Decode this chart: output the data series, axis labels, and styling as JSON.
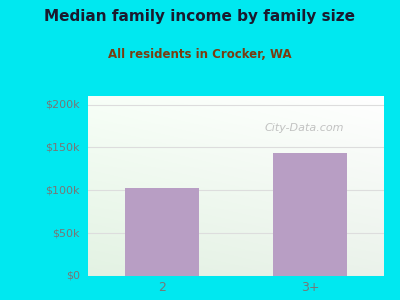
{
  "categories": [
    "2",
    "3+"
  ],
  "values": [
    103000,
    143000
  ],
  "bar_color": "#b89ec4",
  "title": "Median family income by family size",
  "subtitle": "All residents in Crocker, WA",
  "title_color": "#1a1a2e",
  "subtitle_color": "#7a3b10",
  "yticks": [
    0,
    50000,
    100000,
    150000,
    200000
  ],
  "ytick_labels": [
    "$0",
    "$50k",
    "$100k",
    "$150k",
    "$200k"
  ],
  "ylim": [
    0,
    210000
  ],
  "outer_bg": "#00e8f0",
  "watermark": "City-Data.com",
  "tick_color": "#777777",
  "grid_color": "#dddddd",
  "bar_width": 0.5
}
